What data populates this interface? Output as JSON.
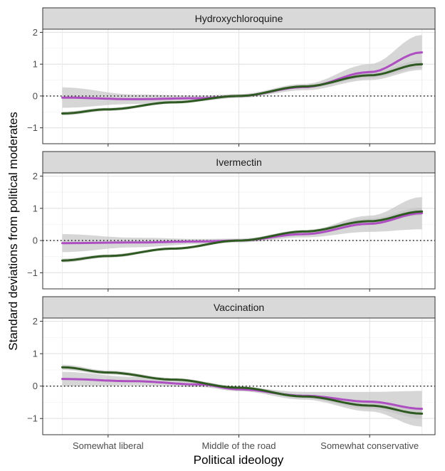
{
  "chart_data": {
    "type": "line",
    "xlabel": "Political ideology",
    "ylabel": "Standard deviations from political moderates",
    "x_tick_labels": [
      "Somewhat liberal",
      "Middle of the road",
      "Somewhat conservative"
    ],
    "x_tick_positions": [
      2,
      3,
      4
    ],
    "xlim": [
      1.5,
      4.5
    ],
    "ylim": [
      -1.5,
      2.1
    ],
    "y_ticks": [
      -1,
      0,
      1,
      2
    ],
    "reference_line": 0,
    "grid": true,
    "colors": {
      "purple": "#ae4fc1",
      "green": "#2e5a22",
      "ribbon": "#c4c4c4",
      "strip": "#d9d9d9"
    },
    "panels": [
      {
        "title": "Hydroxychloroquine",
        "series": [
          {
            "color": "purple",
            "x": [
              1.65,
              2.2,
              2.7,
              3.0,
              3.5,
              4.0,
              4.4
            ],
            "y": [
              -0.05,
              -0.1,
              -0.07,
              0.0,
              0.28,
              0.75,
              1.37
            ],
            "band": [
              0.32,
              0.15,
              0.08,
              0.06,
              0.1,
              0.25,
              0.55
            ]
          },
          {
            "color": "green",
            "x": [
              1.65,
              2.0,
              2.5,
              3.0,
              3.5,
              4.0,
              4.4
            ],
            "y": [
              -0.55,
              -0.42,
              -0.2,
              0.0,
              0.3,
              0.65,
              1.0
            ],
            "band": [
              0.06,
              0.05,
              0.04,
              0.04,
              0.05,
              0.08,
              0.12
            ]
          }
        ]
      },
      {
        "title": "Ivermectin",
        "series": [
          {
            "color": "purple",
            "x": [
              1.65,
              2.2,
              2.7,
              3.0,
              3.5,
              4.0,
              4.4
            ],
            "y": [
              -0.08,
              -0.06,
              -0.03,
              0.0,
              0.2,
              0.52,
              0.85
            ],
            "band": [
              0.28,
              0.15,
              0.08,
              0.06,
              0.1,
              0.25,
              0.5
            ]
          },
          {
            "color": "green",
            "x": [
              1.65,
              2.0,
              2.5,
              3.0,
              3.5,
              4.0,
              4.4
            ],
            "y": [
              -0.62,
              -0.48,
              -0.25,
              0.0,
              0.28,
              0.6,
              0.9
            ],
            "band": [
              0.06,
              0.05,
              0.04,
              0.04,
              0.05,
              0.08,
              0.12
            ]
          }
        ]
      },
      {
        "title": "Vaccination",
        "series": [
          {
            "color": "purple",
            "x": [
              1.65,
              2.2,
              2.7,
              3.0,
              3.5,
              4.0,
              4.4
            ],
            "y": [
              0.22,
              0.15,
              0.05,
              -0.1,
              -0.3,
              -0.48,
              -0.7
            ],
            "band": [
              0.22,
              0.13,
              0.08,
              0.06,
              0.12,
              0.3,
              0.55
            ]
          },
          {
            "color": "green",
            "x": [
              1.65,
              2.0,
              2.5,
              3.0,
              3.5,
              4.0,
              4.4
            ],
            "y": [
              0.58,
              0.42,
              0.2,
              -0.05,
              -0.32,
              -0.6,
              -0.85
            ],
            "band": [
              0.08,
              0.06,
              0.05,
              0.05,
              0.06,
              0.1,
              0.15
            ]
          }
        ]
      }
    ]
  }
}
